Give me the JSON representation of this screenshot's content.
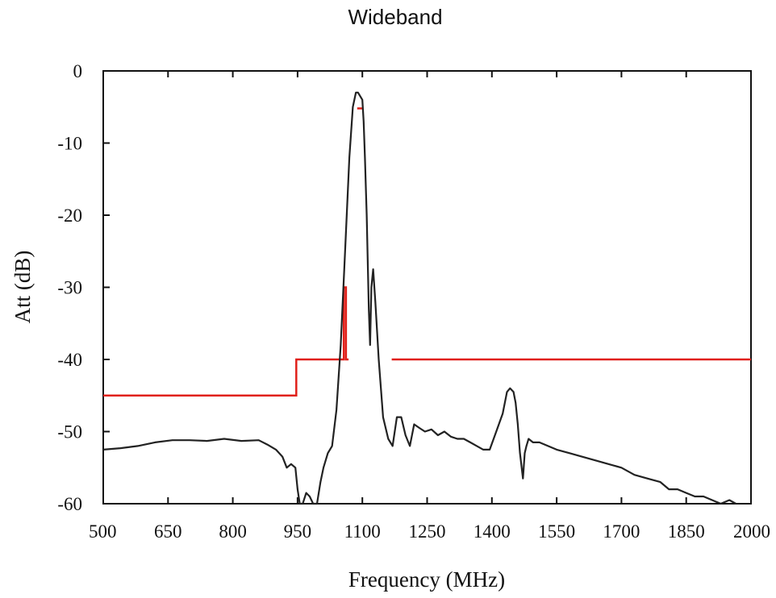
{
  "chart_data": {
    "type": "line",
    "title": "Wideband",
    "xlabel": "Frequency (MHz)",
    "ylabel": "Att (dB)",
    "xlim": [
      500,
      2000
    ],
    "ylim": [
      -60,
      0
    ],
    "xticks": [
      500,
      650,
      800,
      950,
      1100,
      1250,
      1400,
      1550,
      1700,
      1850,
      2000
    ],
    "yticks": [
      0,
      -10,
      -20,
      -30,
      -40,
      -50,
      -60
    ],
    "grid": false,
    "legend": "none",
    "colors": {
      "response": "#222222",
      "mask": "#e0201a"
    },
    "series": [
      {
        "kind": "response",
        "x": [
          500,
          540,
          580,
          620,
          660,
          700,
          740,
          780,
          820,
          860,
          880,
          900,
          915,
          925,
          935,
          945,
          950,
          955,
          962,
          970,
          978,
          986,
          995,
          1003,
          1010,
          1020,
          1030,
          1040,
          1050,
          1060,
          1070,
          1078,
          1085,
          1090,
          1095,
          1100,
          1103,
          1106,
          1110,
          1113,
          1115,
          1118,
          1121,
          1125,
          1130,
          1138,
          1148,
          1160,
          1170,
          1180,
          1190,
          1200,
          1210,
          1220,
          1232,
          1245,
          1260,
          1275,
          1290,
          1305,
          1320,
          1335,
          1350,
          1365,
          1380,
          1395,
          1410,
          1425,
          1435,
          1442,
          1450,
          1455,
          1460,
          1465,
          1468,
          1472,
          1476,
          1480,
          1485,
          1495,
          1510,
          1530,
          1550,
          1580,
          1610,
          1640,
          1670,
          1700,
          1730,
          1760,
          1790,
          1810,
          1830,
          1850,
          1870,
          1890,
          1910,
          1930,
          1950,
          1965
        ],
        "y": [
          -52.5,
          -52.3,
          -52,
          -51.5,
          -51.2,
          -51.2,
          -51.3,
          -51,
          -51.3,
          -51.2,
          -51.8,
          -52.5,
          -53.5,
          -55,
          -54.5,
          -55,
          -58,
          -60,
          -60,
          -58.5,
          -59,
          -60,
          -60,
          -57,
          -55,
          -53,
          -52,
          -47,
          -38,
          -25,
          -12,
          -5,
          -3,
          -3,
          -3.5,
          -4,
          -7,
          -12,
          -20,
          -28,
          -33,
          -38,
          -30,
          -27.5,
          -32,
          -40,
          -48,
          -51,
          -52,
          -48,
          -48,
          -50.5,
          -52,
          -49,
          -49.5,
          -50,
          -49.7,
          -50.5,
          -50,
          -50.7,
          -51,
          -51,
          -51.5,
          -52,
          -52.5,
          -52.5,
          -50,
          -47.5,
          -44.5,
          -44,
          -44.5,
          -46,
          -49,
          -53,
          -54.5,
          -56.5,
          -53,
          -52,
          -51,
          -51.5,
          -51.5,
          -52,
          -52.5,
          -53,
          -53.5,
          -54,
          -54.5,
          -55,
          -56,
          -56.5,
          -57,
          -58,
          -58,
          -58.5,
          -59,
          -59,
          -59.5,
          -60,
          -59.5,
          -60
        ]
      },
      {
        "kind": "mask",
        "segments": [
          [
            [
              500,
              -45
            ],
            [
              947,
              -45
            ],
            [
              947,
              -40
            ],
            [
              1057,
              -40
            ],
            [
              1057,
              -30
            ],
            [
              1062,
              -30
            ],
            [
              1062,
              -40
            ],
            [
              1068,
              -40
            ]
          ],
          [
            [
              1088,
              -5.2
            ],
            [
              1100,
              -5.2
            ]
          ],
          [
            [
              1168,
              -40
            ],
            [
              2000,
              -40
            ]
          ]
        ]
      }
    ]
  }
}
